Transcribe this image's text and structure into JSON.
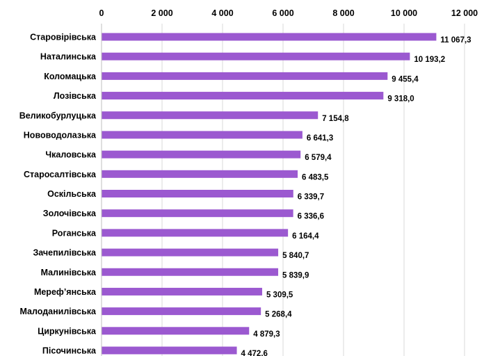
{
  "colors": {
    "bar": "#9b59d0",
    "grid": "#d9d9d9",
    "text": "#000000"
  },
  "chart_data": {
    "type": "bar",
    "orientation": "horizontal",
    "title": "",
    "xlabel": "",
    "ylabel": "",
    "xlim": [
      0,
      12000
    ],
    "x_ticks": [
      "0",
      "2 000",
      "4 000",
      "6 000",
      "8 000",
      "10 000",
      "12 000"
    ],
    "x_tick_values": [
      0,
      2000,
      4000,
      6000,
      8000,
      10000,
      12000
    ],
    "x_axis_position": "top",
    "grid": true,
    "legend": "none",
    "categories": [
      "Старовірівська",
      "Наталинська",
      "Коломацька",
      "Лозівська",
      "Великобурлуцька",
      "Нововодолазька",
      "Чкаловська",
      "Старосалтівська",
      "Оскільська",
      "Золочівська",
      "Роганська",
      "Зачепилівська",
      "Малинівська",
      "Мереф’янська",
      "Малоданилівська",
      "Циркунівська",
      "Пісочинська"
    ],
    "values": [
      11067.3,
      10193.2,
      9455.4,
      9318.0,
      7154.8,
      6641.3,
      6579.4,
      6483.5,
      6339.7,
      6336.6,
      6164.4,
      5840.7,
      5839.9,
      5309.5,
      5268.4,
      4879.3,
      4472.6
    ],
    "data_labels": [
      "11 067,3",
      "10 193,2",
      "9 455,4",
      "9 318,0",
      "7 154,8",
      "6 641,3",
      "6 579,4",
      "6 483,5",
      "6 339,7",
      "6 336,6",
      "6 164,4",
      "5 840,7",
      "5 839,9",
      "5 309,5",
      "5 268,4",
      "4 879,3",
      "4 472,6"
    ]
  }
}
